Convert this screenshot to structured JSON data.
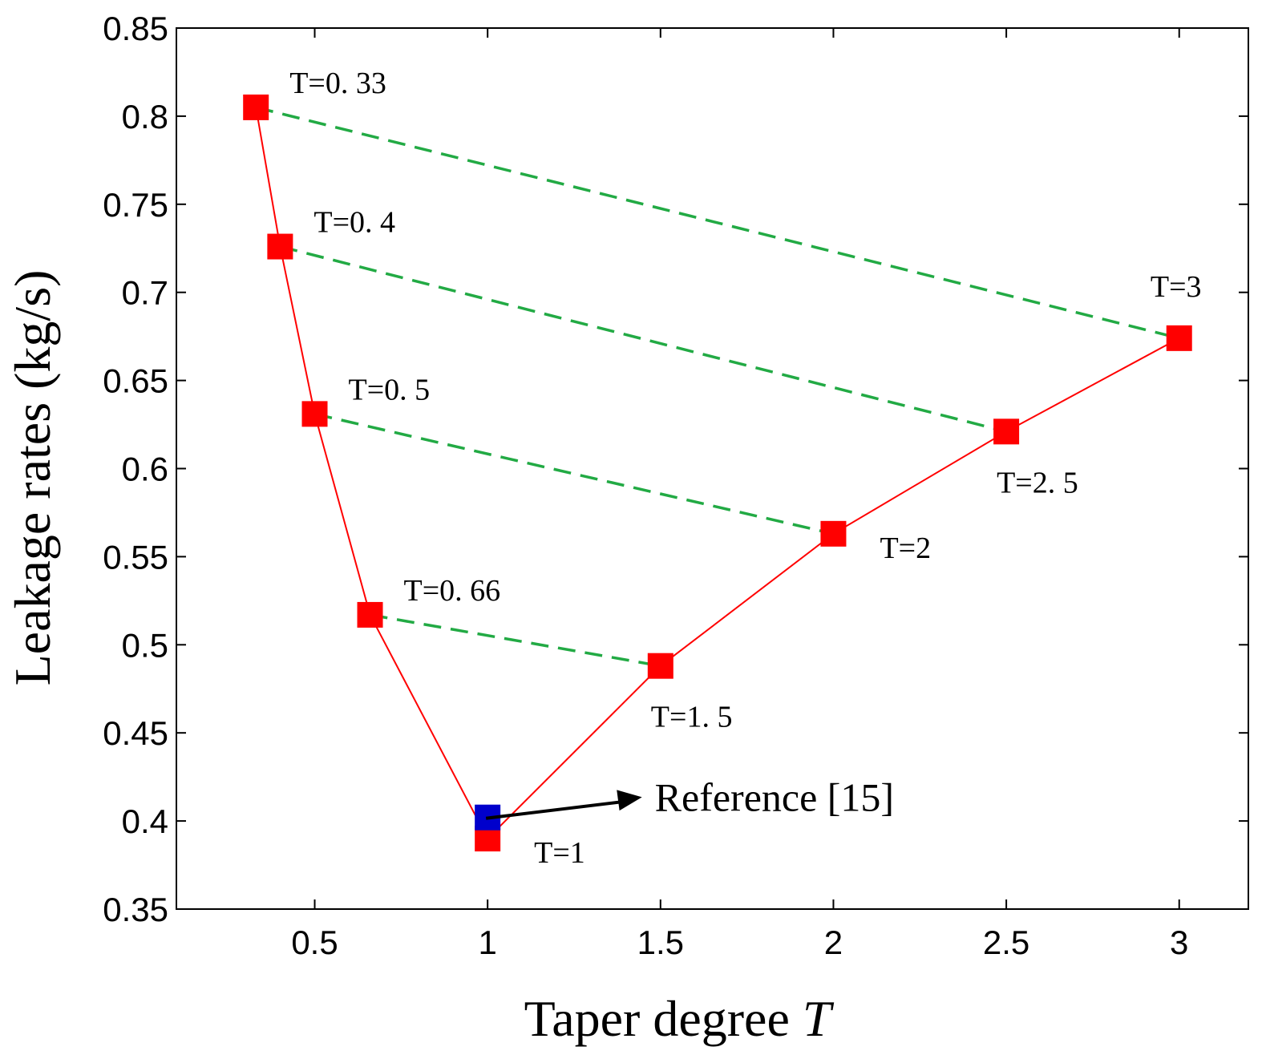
{
  "chart_data": {
    "type": "line",
    "title": "",
    "xlabel": "Taper degree",
    "xlabel_italic_symbol": "T",
    "ylabel": "Leakage rates (kg/s)",
    "xlim": [
      0.1,
      3.2
    ],
    "ylim": [
      0.35,
      0.85
    ],
    "xticks": [
      0.5,
      1,
      1.5,
      2,
      2.5,
      3
    ],
    "xtick_labels": [
      "0.5",
      "1",
      "1.5",
      "2",
      "2.5",
      "3"
    ],
    "yticks": [
      0.35,
      0.4,
      0.45,
      0.5,
      0.55,
      0.6,
      0.65,
      0.7,
      0.75,
      0.8,
      0.85
    ],
    "ytick_labels": [
      "0.35",
      "0.4",
      "0.45",
      "0.5",
      "0.55",
      "0.6",
      "0.65",
      "0.7",
      "0.75",
      "0.8",
      "0.85"
    ],
    "series": [
      {
        "name": "Leakage rate",
        "color": "#ff0000",
        "marker": "square",
        "x": [
          0.33,
          0.4,
          0.5,
          0.66,
          1,
          1.5,
          2,
          2.5,
          3
        ],
        "y": [
          0.805,
          0.726,
          0.631,
          0.517,
          0.39,
          0.488,
          0.563,
          0.621,
          0.674
        ]
      }
    ],
    "reference_point": {
      "name": "Reference [15]",
      "color": "#0000cc",
      "x": 1,
      "y": 0.402,
      "label": "Reference [15]",
      "arrow_to": [
        1.4,
        0.419
      ]
    },
    "pair_lines": [
      {
        "from": [
          0.33,
          0.805
        ],
        "to": [
          3,
          0.674
        ],
        "color": "#22aa44",
        "style": "dashed"
      },
      {
        "from": [
          0.4,
          0.726
        ],
        "to": [
          2.5,
          0.621
        ],
        "color": "#22aa44",
        "style": "dashed"
      },
      {
        "from": [
          0.5,
          0.631
        ],
        "to": [
          2,
          0.563
        ],
        "color": "#22aa44",
        "style": "dashed"
      },
      {
        "from": [
          0.66,
          0.517
        ],
        "to": [
          1.5,
          0.488
        ],
        "color": "#22aa44",
        "style": "dashed"
      }
    ],
    "point_labels": [
      {
        "text": "T=0. 33",
        "x": 0.33,
        "y": 0.805,
        "anchor": "upper-right"
      },
      {
        "text": "T=0. 4",
        "x": 0.4,
        "y": 0.726,
        "anchor": "upper-right"
      },
      {
        "text": "T=0. 5",
        "x": 0.5,
        "y": 0.631,
        "anchor": "upper-right"
      },
      {
        "text": "T=0. 66",
        "x": 0.66,
        "y": 0.517,
        "anchor": "upper-right"
      },
      {
        "text": "T=1",
        "x": 1,
        "y": 0.39,
        "anchor": "lower-right"
      },
      {
        "text": "T=1. 5",
        "x": 1.5,
        "y": 0.488,
        "anchor": "below"
      },
      {
        "text": "T=2",
        "x": 2,
        "y": 0.563,
        "anchor": "lower-right"
      },
      {
        "text": "T=2. 5",
        "x": 2.5,
        "y": 0.621,
        "anchor": "below"
      },
      {
        "text": "T=3",
        "x": 3,
        "y": 0.674,
        "anchor": "above"
      }
    ]
  }
}
